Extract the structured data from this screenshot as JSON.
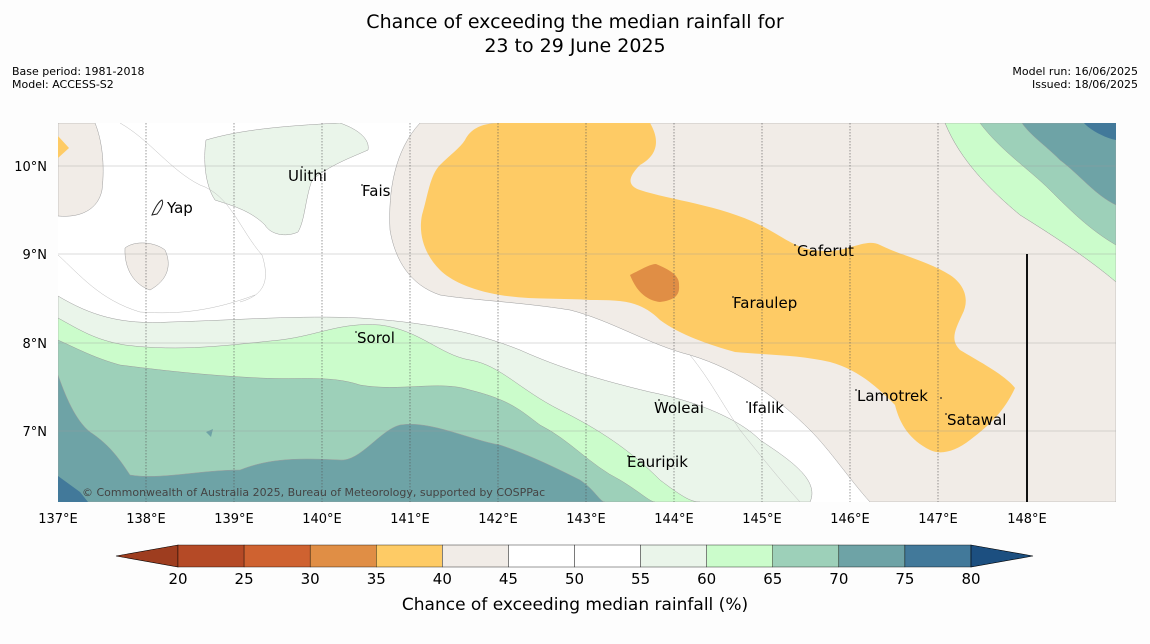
{
  "title": {
    "line1": "Chance of exceeding the median rainfall for",
    "line2": "23 to 29 June 2025"
  },
  "meta": {
    "base_period": "Base period: 1981-2018",
    "model": "Model: ACCESS-S2",
    "model_run": "Model run: 16/06/2025",
    "issued": "Issued: 18/06/2025"
  },
  "map": {
    "lat_labels": [
      "10°N",
      "9°N",
      "8°N",
      "7°N"
    ],
    "lon_labels": [
      "137°E",
      "138°E",
      "139°E",
      "140°E",
      "141°E",
      "142°E",
      "143°E",
      "144°E",
      "145°E",
      "146°E",
      "147°E",
      "148°E"
    ],
    "places": [
      "Yap",
      "Ulithi",
      "Fais",
      "Gaferut",
      "Faraulep",
      "Sorol",
      "Woleai",
      "Ifalik",
      "Lamotrek",
      "Satawal",
      "Eauripik"
    ],
    "copyright": "© Commonwealth of Australia 2025, Bureau of Meteorology, supported by COSPPac"
  },
  "legend": {
    "title": "Chance of exceeding median rainfall (%)",
    "ticks": [
      "20",
      "25",
      "30",
      "35",
      "40",
      "45",
      "50",
      "55",
      "60",
      "65",
      "70",
      "75",
      "80"
    ],
    "colors": [
      "#9e3d1f",
      "#b54a26",
      "#cf6230",
      "#e08e45",
      "#fecb65",
      "#f1ece7",
      "#ffffff",
      "#ffffff",
      "#eaf5ea",
      "#cbfccb",
      "#9dd0b9",
      "#6ea3a6",
      "#42799a",
      "#1c4f80"
    ]
  }
}
